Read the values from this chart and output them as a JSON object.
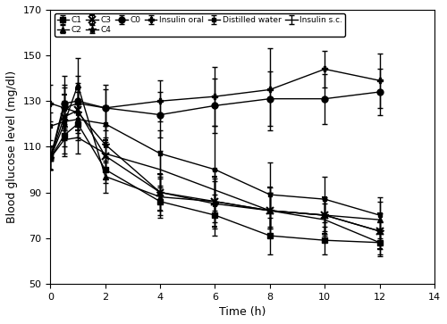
{
  "time": [
    0,
    0.5,
    1,
    2,
    4,
    6,
    8,
    10,
    12
  ],
  "C1": [
    105,
    115,
    120,
    100,
    86,
    80,
    71,
    69,
    68
  ],
  "C1_err": [
    5,
    8,
    7,
    6,
    7,
    9,
    8,
    6,
    6
  ],
  "C2": [
    105,
    120,
    137,
    97,
    88,
    86,
    82,
    80,
    78
  ],
  "C2_err": [
    5,
    10,
    12,
    7,
    8,
    9,
    8,
    7,
    8
  ],
  "C3": [
    105,
    123,
    126,
    106,
    90,
    86,
    82,
    80,
    73
  ],
  "C3_err": [
    5,
    10,
    9,
    7,
    8,
    11,
    10,
    8,
    8
  ],
  "C4": [
    105,
    127,
    125,
    111,
    90,
    85,
    82,
    80,
    73
  ],
  "C4_err": [
    5,
    10,
    9,
    8,
    8,
    11,
    10,
    8,
    8
  ],
  "C0": [
    105,
    129,
    130,
    127,
    124,
    128,
    131,
    131,
    134
  ],
  "C0_err": [
    5,
    12,
    11,
    10,
    10,
    12,
    12,
    11,
    10
  ],
  "insulin_oral": [
    129,
    127,
    129,
    127,
    130,
    132,
    135,
    144,
    139
  ],
  "insulin_oral_err": [
    8,
    9,
    9,
    8,
    9,
    13,
    18,
    8,
    12
  ],
  "distilled_water": [
    119,
    121,
    122,
    120,
    107,
    100,
    89,
    87,
    80
  ],
  "distilled_water_err": [
    6,
    8,
    8,
    8,
    10,
    19,
    14,
    10,
    8
  ],
  "insulin_sc": [
    105,
    113,
    114,
    107,
    100,
    91,
    82,
    78,
    68
  ],
  "insulin_sc_err": [
    5,
    7,
    7,
    7,
    8,
    9,
    8,
    7,
    5
  ],
  "ylabel": "Blood glucose level (mg/dl)",
  "xlabel": "Time (h)",
  "ylim": [
    50,
    170
  ],
  "xlim": [
    0,
    14
  ],
  "yticks": [
    50,
    70,
    90,
    110,
    130,
    150,
    170
  ],
  "xticks": [
    0,
    2,
    4,
    6,
    8,
    10,
    12,
    14
  ]
}
